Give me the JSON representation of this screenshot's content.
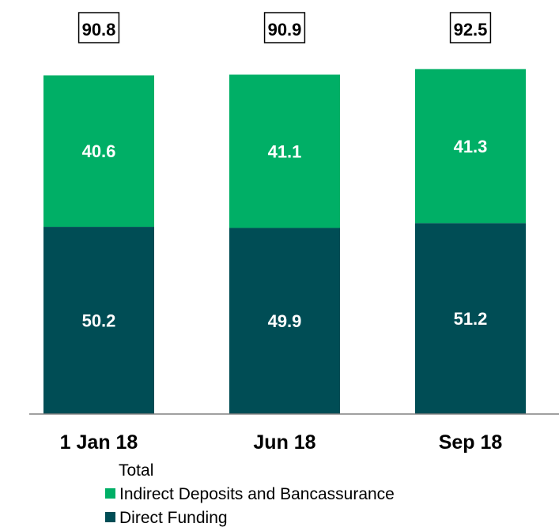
{
  "chart_data": {
    "type": "bar",
    "stacked": true,
    "categories": [
      "1 Jan 18",
      "Jun 18",
      "Sep 18"
    ],
    "series": [
      {
        "name": "Direct Funding",
        "values": [
          50.2,
          49.9,
          51.2
        ],
        "color": "#004D55"
      },
      {
        "name": "Indirect Deposits and Bancassurance",
        "values": [
          40.6,
          41.1,
          41.3
        ],
        "color": "#00AF66"
      }
    ],
    "totals": {
      "name": "Total",
      "values": [
        "90.8",
        "90.9",
        "92.5"
      ]
    },
    "value_labels": {
      "Direct Funding": [
        "50.2",
        "49.9",
        "51.2"
      ],
      "Indirect Deposits and Bancassurance": [
        "40.6",
        "41.1",
        "41.3"
      ]
    },
    "title": "",
    "xlabel": "",
    "ylabel": "",
    "ylim": [
      0,
      95
    ],
    "grid": false,
    "legend_position": "bottom",
    "axis_color": "#808080"
  }
}
